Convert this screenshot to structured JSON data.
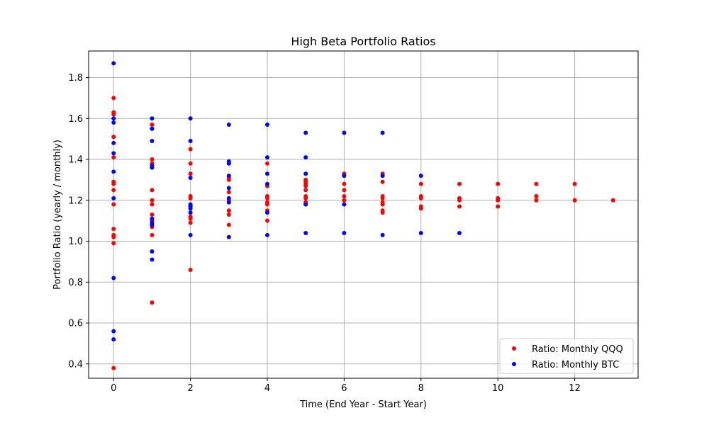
{
  "chart_data": {
    "type": "scatter",
    "title": "High Beta Portfolio Ratios",
    "xlabel": "Time (End Year - Start Year)",
    "ylabel": "Portfolio Ratio (yearly / monthly)",
    "xlim": [
      -0.65,
      13.65
    ],
    "ylim": [
      0.33,
      1.93
    ],
    "xticks": [
      0,
      2,
      4,
      6,
      8,
      10,
      12
    ],
    "xtick_labels": [
      "0",
      "2",
      "4",
      "6",
      "8",
      "10",
      "12"
    ],
    "yticks": [
      0.4,
      0.6,
      0.8,
      1.0,
      1.2,
      1.4,
      1.6,
      1.8
    ],
    "ytick_labels": [
      "0.4",
      "0.6",
      "0.8",
      "1.0",
      "1.2",
      "1.4",
      "1.6",
      "1.8"
    ],
    "grid": true,
    "legend_position": "lower-right",
    "series": [
      {
        "name": "Ratio: Monthly QQQ",
        "color": "#ff0000",
        "points": [
          [
            0,
            1.7
          ],
          [
            0,
            1.63
          ],
          [
            0,
            1.62
          ],
          [
            0,
            1.51
          ],
          [
            0,
            1.41
          ],
          [
            0,
            1.29
          ],
          [
            0,
            1.28
          ],
          [
            0,
            1.25
          ],
          [
            0,
            1.18
          ],
          [
            0,
            1.06
          ],
          [
            0,
            1.03
          ],
          [
            0,
            1.02
          ],
          [
            0,
            0.99
          ],
          [
            0,
            0.38
          ],
          [
            1,
            1.57
          ],
          [
            1,
            1.55
          ],
          [
            1,
            1.4
          ],
          [
            1,
            1.38
          ],
          [
            1,
            1.25
          ],
          [
            1,
            1.2
          ],
          [
            1,
            1.18
          ],
          [
            1,
            1.13
          ],
          [
            1,
            1.1
          ],
          [
            1,
            1.07
          ],
          [
            1,
            1.03
          ],
          [
            1,
            0.7
          ],
          [
            2,
            1.45
          ],
          [
            2,
            1.38
          ],
          [
            2,
            1.33
          ],
          [
            2,
            1.22
          ],
          [
            2,
            1.21
          ],
          [
            2,
            1.17
          ],
          [
            2,
            1.12
          ],
          [
            2,
            1.11
          ],
          [
            2,
            1.09
          ],
          [
            2,
            0.86
          ],
          [
            3,
            1.38
          ],
          [
            3,
            1.31
          ],
          [
            3,
            1.3
          ],
          [
            3,
            1.24
          ],
          [
            3,
            1.2
          ],
          [
            3,
            1.19
          ],
          [
            3,
            1.15
          ],
          [
            3,
            1.13
          ],
          [
            3,
            1.08
          ],
          [
            4,
            1.38
          ],
          [
            4,
            1.27
          ],
          [
            4,
            1.22
          ],
          [
            4,
            1.21
          ],
          [
            4,
            1.19
          ],
          [
            4,
            1.18
          ],
          [
            4,
            1.15
          ],
          [
            4,
            1.1
          ],
          [
            5,
            1.3
          ],
          [
            5,
            1.29
          ],
          [
            5,
            1.28
          ],
          [
            5,
            1.27
          ],
          [
            5,
            1.25
          ],
          [
            5,
            1.22
          ],
          [
            5,
            1.21
          ],
          [
            5,
            1.19
          ],
          [
            5,
            1.18
          ],
          [
            6,
            1.33
          ],
          [
            6,
            1.28
          ],
          [
            6,
            1.25
          ],
          [
            6,
            1.22
          ],
          [
            6,
            1.2
          ],
          [
            6,
            1.18
          ],
          [
            7,
            1.33
          ],
          [
            7,
            1.29
          ],
          [
            7,
            1.22
          ],
          [
            7,
            1.21
          ],
          [
            7,
            1.19
          ],
          [
            7,
            1.18
          ],
          [
            7,
            1.15
          ],
          [
            7,
            1.14
          ],
          [
            8,
            1.28
          ],
          [
            8,
            1.22
          ],
          [
            8,
            1.21
          ],
          [
            8,
            1.17
          ],
          [
            8,
            1.16
          ],
          [
            9,
            1.28
          ],
          [
            9,
            1.21
          ],
          [
            9,
            1.2
          ],
          [
            9,
            1.17
          ],
          [
            10,
            1.28
          ],
          [
            10,
            1.21
          ],
          [
            10,
            1.2
          ],
          [
            10,
            1.17
          ],
          [
            11,
            1.28
          ],
          [
            11,
            1.22
          ],
          [
            11,
            1.2
          ],
          [
            12,
            1.28
          ],
          [
            12,
            1.2
          ],
          [
            13,
            1.2
          ]
        ]
      },
      {
        "name": "Ratio: Monthly BTC",
        "color": "#0000ff",
        "points": [
          [
            0,
            1.87
          ],
          [
            0,
            1.6
          ],
          [
            0,
            1.58
          ],
          [
            0,
            1.48
          ],
          [
            0,
            1.43
          ],
          [
            0,
            1.34
          ],
          [
            0,
            1.21
          ],
          [
            0,
            0.82
          ],
          [
            0,
            0.56
          ],
          [
            0,
            0.52
          ],
          [
            1,
            1.6
          ],
          [
            1,
            1.55
          ],
          [
            1,
            1.49
          ],
          [
            1,
            1.37
          ],
          [
            1,
            1.36
          ],
          [
            1,
            1.11
          ],
          [
            1,
            1.09
          ],
          [
            1,
            1.08
          ],
          [
            1,
            0.95
          ],
          [
            1,
            0.91
          ],
          [
            2,
            1.6
          ],
          [
            2,
            1.49
          ],
          [
            2,
            1.31
          ],
          [
            2,
            1.18
          ],
          [
            2,
            1.17
          ],
          [
            2,
            1.16
          ],
          [
            2,
            1.14
          ],
          [
            2,
            1.03
          ],
          [
            3,
            1.57
          ],
          [
            3,
            1.39
          ],
          [
            3,
            1.38
          ],
          [
            3,
            1.32
          ],
          [
            3,
            1.26
          ],
          [
            3,
            1.21
          ],
          [
            3,
            1.19
          ],
          [
            3,
            1.02
          ],
          [
            4,
            1.57
          ],
          [
            4,
            1.41
          ],
          [
            4,
            1.33
          ],
          [
            4,
            1.28
          ],
          [
            4,
            1.14
          ],
          [
            4,
            1.03
          ],
          [
            5,
            1.53
          ],
          [
            5,
            1.41
          ],
          [
            5,
            1.33
          ],
          [
            5,
            1.18
          ],
          [
            5,
            1.04
          ],
          [
            6,
            1.53
          ],
          [
            6,
            1.32
          ],
          [
            6,
            1.18
          ],
          [
            6,
            1.04
          ],
          [
            7,
            1.53
          ],
          [
            7,
            1.32
          ],
          [
            7,
            1.03
          ],
          [
            8,
            1.32
          ],
          [
            8,
            1.04
          ],
          [
            9,
            1.04
          ]
        ]
      }
    ]
  }
}
